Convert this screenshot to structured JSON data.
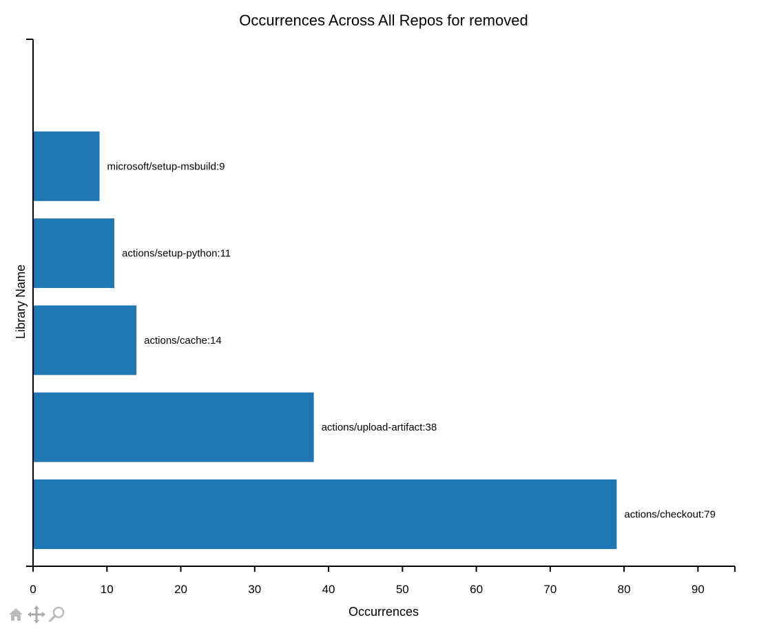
{
  "chart_data": {
    "type": "bar",
    "orientation": "horizontal",
    "title": "Occurrences Across All Repos for removed",
    "xlabel": "Occurrences",
    "ylabel": "Library Name",
    "xlim": [
      0,
      95
    ],
    "xticks": [
      0,
      10,
      20,
      30,
      40,
      50,
      60,
      70,
      80,
      90
    ],
    "categories": [
      "actions/checkout",
      "actions/upload-artifact",
      "actions/cache",
      "actions/setup-python",
      "microsoft/setup-msbuild"
    ],
    "values": [
      79,
      38,
      14,
      11,
      9
    ],
    "data_labels": [
      "actions/checkout:79",
      "actions/upload-artifact:38",
      "actions/cache:14",
      "actions/setup-python:11",
      "microsoft/setup-msbuild:9"
    ],
    "bar_color": "#1f77b4",
    "grid": false
  },
  "toolbar": {
    "icons": [
      "home-icon",
      "pan-icon",
      "zoom-icon"
    ],
    "icon_color": "#bbbbbb"
  }
}
